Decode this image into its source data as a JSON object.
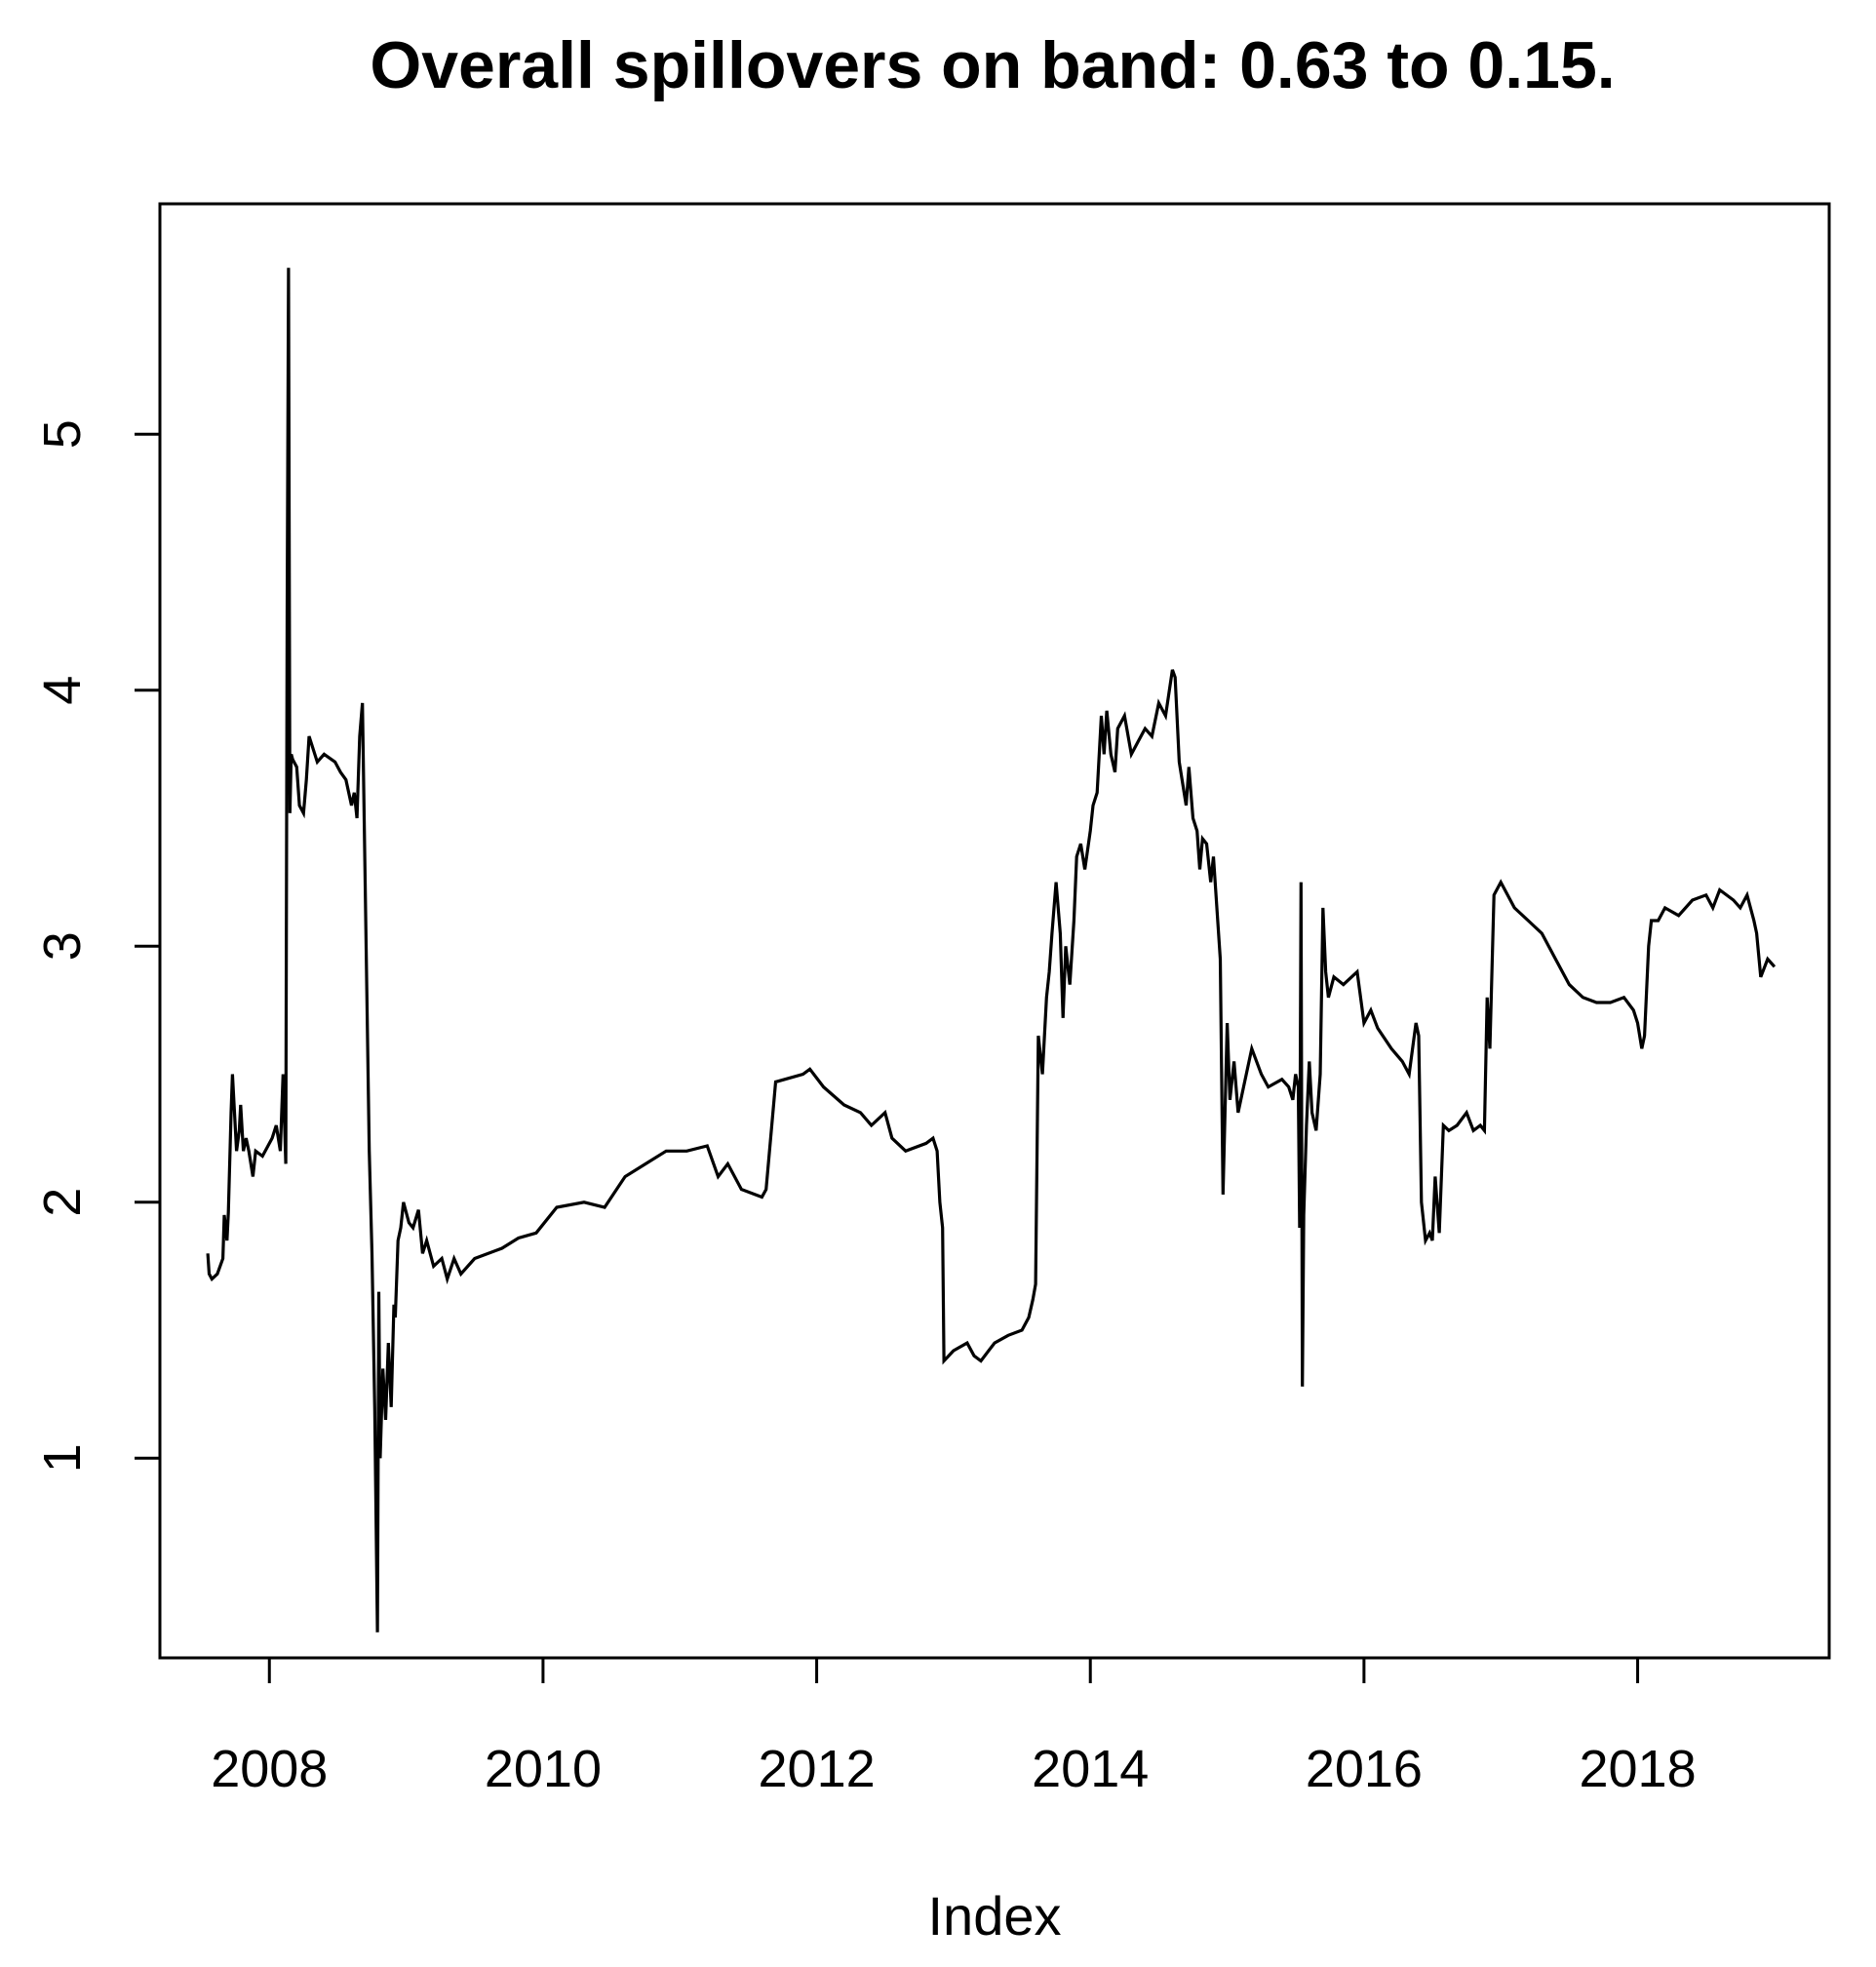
{
  "chart_data": {
    "type": "line",
    "title": "Overall spillovers on band: 0.63 to 0.15.",
    "xlabel": "Index",
    "ylabel": "",
    "xlim": [
      2007.2,
      2019.4
    ],
    "ylim": [
      0.22,
      5.9
    ],
    "x_ticks": [
      2008,
      2010,
      2012,
      2014,
      2016,
      2018
    ],
    "y_ticks": [
      1,
      2,
      3,
      4,
      5
    ],
    "grid": false,
    "legend": "none",
    "line_color": "#000000",
    "series": [
      {
        "x": [
          2007.55,
          2007.56,
          2007.58,
          2007.62,
          2007.66,
          2007.67,
          2007.69,
          2007.7,
          2007.72,
          2007.73,
          2007.76,
          2007.78,
          2007.79,
          2007.81,
          2007.83,
          2007.85,
          2007.88,
          2007.9,
          2007.95,
          2008.02,
          2008.05,
          2008.08,
          2008.1,
          2008.12,
          2008.13,
          2008.14,
          2008.15,
          2008.16,
          2008.17,
          2008.2,
          2008.22,
          2008.25,
          2008.27,
          2008.29,
          2008.35,
          2008.4,
          2008.48,
          2008.52,
          2008.56,
          2008.6,
          2008.62,
          2008.64,
          2008.66,
          2008.68,
          2008.7,
          2008.73,
          2008.75,
          2008.77,
          2008.79,
          2008.8,
          2008.81,
          2008.83,
          2008.85,
          2008.87,
          2008.89,
          2008.91,
          2008.92,
          2008.94,
          2008.96,
          2008.98,
          2009.02,
          2009.05,
          2009.09,
          2009.12,
          2009.15,
          2009.2,
          2009.26,
          2009.3,
          2009.35,
          2009.4,
          2009.5,
          2009.7,
          2009.82,
          2009.95,
          2010.1,
          2010.3,
          2010.45,
          2010.6,
          2010.75,
          2010.9,
          2011.05,
          2011.2,
          2011.28,
          2011.35,
          2011.45,
          2011.55,
          2011.6,
          2011.63,
          2011.7,
          2011.9,
          2011.95,
          2012.05,
          2012.2,
          2012.32,
          2012.4,
          2012.5,
          2012.55,
          2012.65,
          2012.8,
          2012.85,
          2012.88,
          2012.9,
          2012.92,
          2012.93,
          2013.0,
          2013.1,
          2013.15,
          2013.2,
          2013.3,
          2013.4,
          2013.5,
          2013.55,
          2013.58,
          2013.6,
          2013.62,
          2013.65,
          2013.68,
          2013.7,
          2013.72,
          2013.75,
          2013.78,
          2013.8,
          2013.82,
          2013.85,
          2013.88,
          2013.9,
          2013.93,
          2013.96,
          2014.0,
          2014.02,
          2014.05,
          2014.08,
          2014.1,
          2014.12,
          2014.15,
          2014.18,
          2014.2,
          2014.25,
          2014.3,
          2014.35,
          2014.4,
          2014.45,
          2014.5,
          2014.55,
          2014.6,
          2014.62,
          2014.65,
          2014.7,
          2014.72,
          2014.75,
          2014.78,
          2014.8,
          2014.82,
          2014.85,
          2014.88,
          2014.9,
          2014.95,
          2014.97,
          2015.0,
          2015.02,
          2015.05,
          2015.08,
          2015.12,
          2015.18,
          2015.25,
          2015.3,
          2015.4,
          2015.45,
          2015.48,
          2015.5,
          2015.52,
          2015.53,
          2015.54,
          2015.55,
          2015.56,
          2015.58,
          2015.6,
          2015.62,
          2015.65,
          2015.68,
          2015.7,
          2015.72,
          2015.74,
          2015.78,
          2015.85,
          2015.95,
          2016.0,
          2016.05,
          2016.1,
          2016.2,
          2016.28,
          2016.33,
          2016.38,
          2016.4,
          2016.42,
          2016.45,
          2016.48,
          2016.5,
          2016.52,
          2016.55,
          2016.58,
          2016.62,
          2016.68,
          2016.75,
          2016.8,
          2016.85,
          2016.88,
          2016.9,
          2016.92,
          2016.95,
          2017.0,
          2017.1,
          2017.2,
          2017.3,
          2017.4,
          2017.5,
          2017.6,
          2017.7,
          2017.8,
          2017.9,
          2017.97,
          2018.0,
          2018.03,
          2018.05,
          2018.08,
          2018.1,
          2018.15,
          2018.2,
          2018.3,
          2018.4,
          2018.5,
          2018.55,
          2018.6,
          2018.7,
          2018.75,
          2018.8,
          2018.85,
          2018.87,
          2018.9,
          2018.95,
          2019.0
        ],
        "values": [
          1.8,
          1.72,
          1.7,
          1.72,
          1.78,
          1.95,
          1.85,
          1.96,
          2.35,
          2.5,
          2.2,
          2.28,
          2.38,
          2.2,
          2.25,
          2.2,
          2.1,
          2.2,
          2.18,
          2.25,
          2.3,
          2.2,
          2.5,
          2.15,
          4.3,
          5.65,
          3.52,
          3.75,
          3.73,
          3.7,
          3.55,
          3.52,
          3.65,
          3.82,
          3.72,
          3.75,
          3.72,
          3.68,
          3.65,
          3.55,
          3.6,
          3.5,
          3.82,
          3.95,
          3.25,
          2.2,
          1.8,
          1.2,
          0.32,
          1.65,
          1.0,
          1.35,
          1.15,
          1.45,
          1.2,
          1.6,
          1.55,
          1.85,
          1.9,
          2.0,
          1.92,
          1.9,
          1.97,
          1.8,
          1.85,
          1.75,
          1.78,
          1.7,
          1.78,
          1.72,
          1.78,
          1.82,
          1.86,
          1.88,
          1.98,
          2.0,
          1.98,
          2.1,
          2.15,
          2.2,
          2.2,
          2.22,
          2.1,
          2.15,
          2.05,
          2.03,
          2.02,
          2.05,
          2.47,
          2.5,
          2.52,
          2.45,
          2.38,
          2.35,
          2.3,
          2.35,
          2.25,
          2.2,
          2.23,
          2.25,
          2.2,
          2.0,
          1.9,
          1.38,
          1.42,
          1.45,
          1.4,
          1.38,
          1.45,
          1.48,
          1.5,
          1.55,
          1.62,
          1.68,
          2.65,
          2.5,
          2.8,
          2.9,
          3.05,
          3.25,
          3.05,
          2.72,
          3.0,
          2.85,
          3.1,
          3.35,
          3.4,
          3.3,
          3.45,
          3.55,
          3.6,
          3.9,
          3.75,
          3.92,
          3.75,
          3.68,
          3.85,
          3.9,
          3.75,
          3.8,
          3.85,
          3.82,
          3.95,
          3.9,
          4.08,
          4.05,
          3.72,
          3.55,
          3.7,
          3.5,
          3.45,
          3.3,
          3.42,
          3.4,
          3.25,
          3.35,
          2.95,
          2.03,
          2.7,
          2.4,
          2.55,
          2.35,
          2.45,
          2.6,
          2.5,
          2.45,
          2.48,
          2.45,
          2.4,
          2.5,
          2.45,
          1.9,
          3.25,
          1.28,
          1.95,
          2.3,
          2.55,
          2.35,
          2.28,
          2.5,
          3.15,
          2.9,
          2.8,
          2.88,
          2.85,
          2.9,
          2.7,
          2.75,
          2.68,
          2.6,
          2.55,
          2.5,
          2.7,
          2.65,
          2.0,
          1.85,
          1.88,
          1.85,
          2.1,
          1.88,
          2.3,
          2.28,
          2.3,
          2.35,
          2.28,
          2.3,
          2.28,
          2.8,
          2.6,
          3.2,
          3.25,
          3.15,
          3.1,
          3.05,
          2.95,
          2.85,
          2.8,
          2.78,
          2.78,
          2.8,
          2.75,
          2.7,
          2.6,
          2.65,
          3.0,
          3.1,
          3.1,
          3.15,
          3.12,
          3.18,
          3.2,
          3.15,
          3.22,
          3.18,
          3.15,
          3.2,
          3.1,
          3.05,
          2.88,
          2.95,
          2.92
        ]
      }
    ]
  }
}
